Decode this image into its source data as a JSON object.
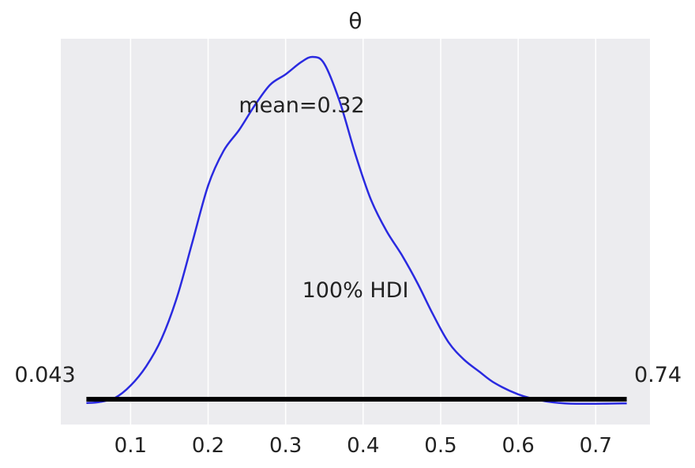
{
  "chart_data": {
    "type": "line",
    "title": "θ",
    "xlabel": "",
    "ylabel": "",
    "xlim": [
      0.01,
      0.77
    ],
    "ylim": [
      0,
      1.0
    ],
    "grid": true,
    "xticks": [
      0.1,
      0.2,
      0.3,
      0.4,
      0.5,
      0.6,
      0.7
    ],
    "xtick_labels": [
      "0.1",
      "0.2",
      "0.3",
      "0.4",
      "0.5",
      "0.6",
      "0.7"
    ],
    "series": [
      {
        "color": "#2a2ae0",
        "x": [
          0.043,
          0.06,
          0.08,
          0.1,
          0.12,
          0.14,
          0.16,
          0.18,
          0.2,
          0.22,
          0.24,
          0.26,
          0.28,
          0.3,
          0.32,
          0.335,
          0.35,
          0.37,
          0.39,
          0.41,
          0.43,
          0.45,
          0.47,
          0.49,
          0.51,
          0.53,
          0.55,
          0.57,
          0.6,
          0.63,
          0.66,
          0.7,
          0.74
        ],
        "y": [
          0.005,
          0.008,
          0.02,
          0.055,
          0.11,
          0.19,
          0.31,
          0.47,
          0.63,
          0.73,
          0.79,
          0.86,
          0.92,
          0.95,
          0.985,
          1.0,
          0.98,
          0.87,
          0.72,
          0.59,
          0.5,
          0.43,
          0.35,
          0.26,
          0.18,
          0.13,
          0.095,
          0.062,
          0.03,
          0.012,
          0.004,
          0.003,
          0.004
        ]
      }
    ],
    "annotations": {
      "mean_label": "mean=0.32",
      "hdi_label": "100% HDI",
      "hdi_low": 0.043,
      "hdi_high": 0.74,
      "hdi_low_label": "0.043",
      "hdi_high_label": "0.74"
    },
    "colors": {
      "background": "#ececef",
      "grid": "#ffffff",
      "hdi_line": "#000000"
    }
  }
}
